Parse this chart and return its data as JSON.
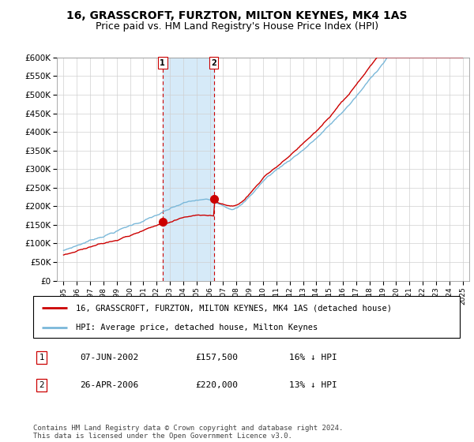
{
  "title": "16, GRASSCROFT, FURZTON, MILTON KEYNES, MK4 1AS",
  "subtitle": "Price paid vs. HM Land Registry's House Price Index (HPI)",
  "ylim": [
    0,
    600000
  ],
  "yticks": [
    0,
    50000,
    100000,
    150000,
    200000,
    250000,
    300000,
    350000,
    400000,
    450000,
    500000,
    550000,
    600000
  ],
  "ytick_labels": [
    "£0",
    "£50K",
    "£100K",
    "£150K",
    "£200K",
    "£250K",
    "£300K",
    "£350K",
    "£400K",
    "£450K",
    "£500K",
    "£550K",
    "£600K"
  ],
  "hpi_color": "#7ab8d9",
  "price_color": "#cc0000",
  "dashed_color": "#cc0000",
  "span_color": "#d6eaf8",
  "sale1_year": 2002.44,
  "sale1_price": 157500,
  "sale2_year": 2006.29,
  "sale2_price": 220000,
  "sale1_date": "07-JUN-2002",
  "sale2_date": "26-APR-2006",
  "sale1_hpi_pct": "16% ↓ HPI",
  "sale2_hpi_pct": "13% ↓ HPI",
  "legend_line1": "16, GRASSCROFT, FURZTON, MILTON KEYNES, MK4 1AS (detached house)",
  "legend_line2": "HPI: Average price, detached house, Milton Keynes",
  "footer": "Contains HM Land Registry data © Crown copyright and database right 2024.\nThis data is licensed under the Open Government Licence v3.0.",
  "grid_color": "#d0d0d0",
  "title_fontsize": 10,
  "subtitle_fontsize": 9
}
